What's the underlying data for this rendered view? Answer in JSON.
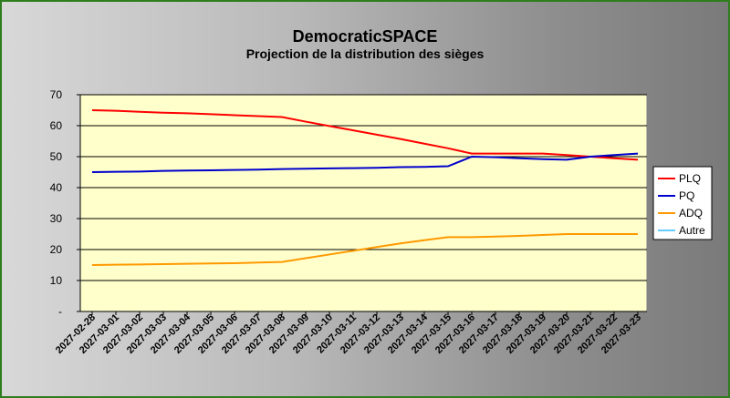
{
  "chart_data": {
    "type": "line",
    "title": "DemocraticSPACE",
    "subtitle": "Projection de la distribution des sièges",
    "xlabel": "",
    "ylabel": "",
    "ylim": [
      0,
      70
    ],
    "y_ticks": [
      "-",
      "10",
      "20",
      "30",
      "40",
      "50",
      "60",
      "70"
    ],
    "grid": true,
    "legend_position": "right",
    "categories": [
      "2027-02-28",
      "2027-03-01",
      "2027-03-02",
      "2027-03-03",
      "2027-03-04",
      "2027-03-05",
      "2027-03-06",
      "2027-03-07",
      "2027-03-08",
      "2027-03-09",
      "2027-03-10",
      "2027-03-11",
      "2027-03-12",
      "2027-03-13",
      "2027-03-14",
      "2027-03-15",
      "2027-03-16",
      "2027-03-17",
      "2027-03-18",
      "2027-03-19",
      "2027-03-20",
      "2027-03-21",
      "2027-03-22",
      "2027-03-23"
    ],
    "series": [
      {
        "name": "PLQ",
        "color": "#ff0000",
        "values": [
          65,
          64.8,
          64.5,
          64.2,
          64,
          63.7,
          63.4,
          63.1,
          62.8,
          61.3,
          59.9,
          58.5,
          57.1,
          55.7,
          54.2,
          52.7,
          51,
          51,
          51,
          51,
          50.5,
          50,
          49.5,
          49
        ]
      },
      {
        "name": "PQ",
        "color": "#0000cc",
        "values": [
          45,
          45.1,
          45.2,
          45.4,
          45.5,
          45.6,
          45.7,
          45.8,
          46,
          46.1,
          46.2,
          46.3,
          46.4,
          46.6,
          46.7,
          46.9,
          50,
          49.8,
          49.5,
          49.2,
          49,
          50,
          50.5,
          51
        ]
      },
      {
        "name": "ADQ",
        "color": "#ff9900",
        "values": [
          15,
          15.1,
          15.2,
          15.3,
          15.4,
          15.5,
          15.6,
          15.8,
          16,
          17.2,
          18.4,
          19.6,
          20.8,
          22,
          23,
          24,
          24,
          24.2,
          24.4,
          24.7,
          25,
          25,
          25,
          25
        ]
      },
      {
        "name": "Autre",
        "color": "#66ccff",
        "values": [
          null,
          null,
          null,
          null,
          null,
          null,
          null,
          null,
          null,
          null,
          null,
          null,
          null,
          null,
          null,
          null,
          null,
          null,
          null,
          null,
          null,
          null,
          null,
          null
        ]
      }
    ],
    "colors": {
      "plot_background": "#ffffcc",
      "gridline": "#000000",
      "frame_border": "#2e7d1e"
    }
  }
}
